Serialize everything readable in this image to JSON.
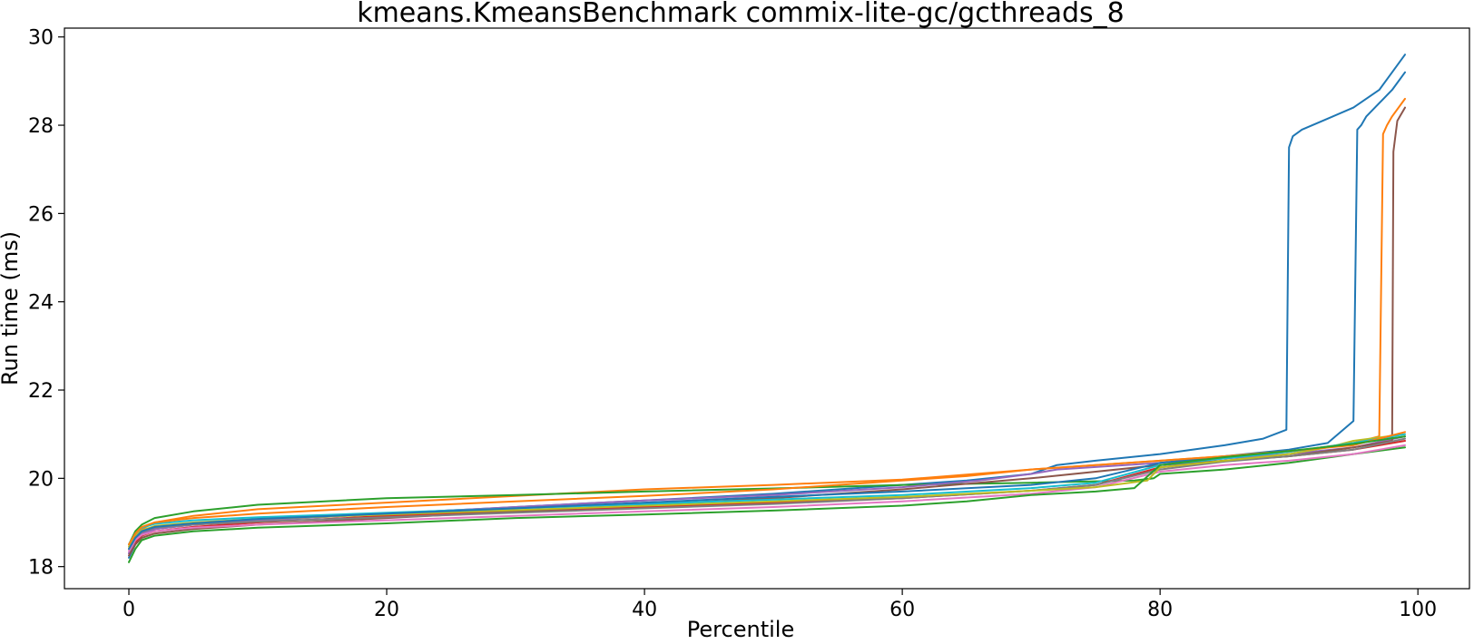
{
  "chart_data": {
    "type": "line",
    "title": "kmeans.KmeansBenchmark commix-lite-gc/gcthreads_8",
    "xlabel": "Percentile",
    "ylabel": "Run time (ms)",
    "xlim": [
      -5,
      104
    ],
    "ylim": [
      17.5,
      30.2
    ],
    "xticks": [
      0,
      20,
      40,
      60,
      80,
      100
    ],
    "yticks": [
      18,
      20,
      22,
      24,
      26,
      28,
      30
    ],
    "grid": false,
    "legend": "none",
    "series": [
      {
        "color": "#1f77b4",
        "x": [
          0,
          0.5,
          1,
          2,
          5,
          10,
          20,
          30,
          40,
          50,
          60,
          65,
          70,
          72,
          75,
          80,
          85,
          88,
          89.8,
          90,
          90.3,
          91,
          93,
          95,
          97,
          98,
          99
        ],
        "y": [
          18.2,
          18.5,
          18.7,
          18.85,
          18.95,
          19.05,
          19.2,
          19.35,
          19.5,
          19.65,
          19.85,
          19.95,
          20.1,
          20.3,
          20.4,
          20.55,
          20.75,
          20.9,
          21.1,
          27.5,
          27.75,
          27.9,
          28.15,
          28.4,
          28.8,
          29.2,
          29.6
        ]
      },
      {
        "color": "#ff7f0e",
        "x": [
          0,
          0.5,
          1,
          2,
          5,
          10,
          20,
          30,
          40,
          50,
          60,
          70,
          80,
          90,
          95,
          97,
          97.3,
          97.6,
          98,
          99
        ],
        "y": [
          18.4,
          18.7,
          18.85,
          19.0,
          19.15,
          19.3,
          19.45,
          19.6,
          19.75,
          19.85,
          19.97,
          20.2,
          20.4,
          20.6,
          20.8,
          20.95,
          27.8,
          28.0,
          28.2,
          28.6
        ]
      },
      {
        "color": "#2ca02c",
        "x": [
          0,
          0.5,
          1,
          2,
          5,
          10,
          20,
          30,
          40,
          50,
          60,
          70,
          78,
          79.5,
          80,
          85,
          90,
          95,
          99
        ],
        "y": [
          18.5,
          18.8,
          18.95,
          19.1,
          19.25,
          19.4,
          19.55,
          19.62,
          19.7,
          19.77,
          19.85,
          19.9,
          19.95,
          20.0,
          20.1,
          20.2,
          20.35,
          20.55,
          20.7
        ]
      },
      {
        "color": "#d62728",
        "x": [
          0,
          0.5,
          1,
          2,
          5,
          10,
          20,
          30,
          40,
          50,
          60,
          70,
          75,
          80,
          85,
          90,
          95,
          99
        ],
        "y": [
          18.3,
          18.55,
          18.7,
          18.8,
          18.9,
          19.0,
          19.15,
          19.25,
          19.35,
          19.45,
          19.55,
          19.72,
          19.85,
          20.25,
          20.4,
          20.5,
          20.65,
          20.85
        ]
      },
      {
        "color": "#9467bd",
        "x": [
          0,
          0.5,
          1,
          2,
          5,
          10,
          20,
          30,
          40,
          50,
          60,
          66,
          70,
          72,
          80,
          90,
          95,
          99
        ],
        "y": [
          18.3,
          18.6,
          18.75,
          18.85,
          18.95,
          19.05,
          19.2,
          19.35,
          19.5,
          19.62,
          19.8,
          19.95,
          20.1,
          20.2,
          20.35,
          20.55,
          20.7,
          20.95
        ]
      },
      {
        "color": "#8c564b",
        "x": [
          0,
          0.5,
          1,
          2,
          5,
          10,
          20,
          30,
          40,
          50,
          60,
          70,
          80,
          90,
          95,
          98,
          98.1,
          98.4,
          99
        ],
        "y": [
          18.25,
          18.5,
          18.65,
          18.75,
          18.85,
          18.95,
          19.1,
          19.25,
          19.4,
          19.55,
          19.75,
          20.0,
          20.3,
          20.5,
          20.7,
          20.85,
          27.4,
          28.1,
          28.4
        ]
      },
      {
        "color": "#e377c2",
        "x": [
          0,
          0.5,
          1,
          2,
          5,
          10,
          20,
          30,
          40,
          50,
          60,
          70,
          75,
          80,
          85,
          90,
          95,
          99
        ],
        "y": [
          18.35,
          18.6,
          18.72,
          18.8,
          18.88,
          18.95,
          19.05,
          19.15,
          19.25,
          19.35,
          19.48,
          19.65,
          19.8,
          20.15,
          20.3,
          20.4,
          20.55,
          20.75
        ]
      },
      {
        "color": "#7f7f7f",
        "x": [
          0,
          0.5,
          1,
          2,
          5,
          10,
          20,
          30,
          40,
          50,
          60,
          70,
          75,
          80,
          85,
          90,
          95,
          99
        ],
        "y": [
          18.4,
          18.65,
          18.78,
          18.88,
          18.95,
          19.02,
          19.12,
          19.22,
          19.32,
          19.42,
          19.55,
          19.72,
          19.85,
          20.2,
          20.38,
          20.5,
          20.65,
          20.9
        ]
      },
      {
        "color": "#bcbd22",
        "x": [
          0,
          0.5,
          1,
          2,
          5,
          10,
          20,
          30,
          40,
          50,
          60,
          70,
          75,
          79,
          80,
          85,
          90,
          93,
          95,
          99
        ],
        "y": [
          18.45,
          18.7,
          18.82,
          18.92,
          19.0,
          19.08,
          19.18,
          19.28,
          19.38,
          19.48,
          19.58,
          19.72,
          19.8,
          19.95,
          20.25,
          20.4,
          20.55,
          20.7,
          20.85,
          21.0
        ]
      },
      {
        "color": "#17becf",
        "x": [
          0,
          0.5,
          1,
          2,
          5,
          10,
          20,
          30,
          40,
          50,
          60,
          70,
          75,
          80,
          85,
          90,
          95,
          99
        ],
        "y": [
          18.5,
          18.75,
          18.88,
          18.97,
          19.05,
          19.12,
          19.22,
          19.32,
          19.42,
          19.52,
          19.62,
          19.78,
          19.9,
          20.3,
          20.45,
          20.6,
          20.8,
          21.0
        ]
      },
      {
        "color": "#1f77b4",
        "x": [
          0,
          0.5,
          1,
          2,
          5,
          10,
          20,
          30,
          40,
          50,
          60,
          70,
          75,
          80,
          85,
          90,
          93,
          95,
          95.3,
          95.6,
          96,
          97,
          98,
          99
        ],
        "y": [
          18.4,
          18.65,
          18.8,
          18.9,
          18.98,
          19.08,
          19.2,
          19.32,
          19.45,
          19.58,
          19.7,
          19.85,
          20.0,
          20.35,
          20.5,
          20.65,
          20.8,
          21.3,
          27.9,
          28.0,
          28.2,
          28.5,
          28.8,
          29.2
        ]
      },
      {
        "color": "#ff7f0e",
        "x": [
          0,
          0.5,
          1,
          2,
          5,
          10,
          20,
          30,
          40,
          50,
          60,
          65,
          70,
          75,
          80,
          85,
          90,
          95,
          99
        ],
        "y": [
          18.5,
          18.75,
          18.9,
          19.0,
          19.1,
          19.2,
          19.35,
          19.48,
          19.6,
          19.75,
          19.95,
          20.05,
          20.2,
          20.3,
          20.4,
          20.5,
          20.62,
          20.75,
          21.05
        ]
      },
      {
        "color": "#2ca02c",
        "x": [
          0,
          0.5,
          1,
          2,
          5,
          10,
          20,
          30,
          40,
          50,
          60,
          65,
          70,
          75,
          78,
          80,
          85,
          90,
          95,
          99
        ],
        "y": [
          18.1,
          18.4,
          18.6,
          18.7,
          18.8,
          18.88,
          18.98,
          19.1,
          19.18,
          19.27,
          19.38,
          19.48,
          19.62,
          19.7,
          19.78,
          20.3,
          20.48,
          20.62,
          20.78,
          20.95
        ]
      }
    ]
  }
}
